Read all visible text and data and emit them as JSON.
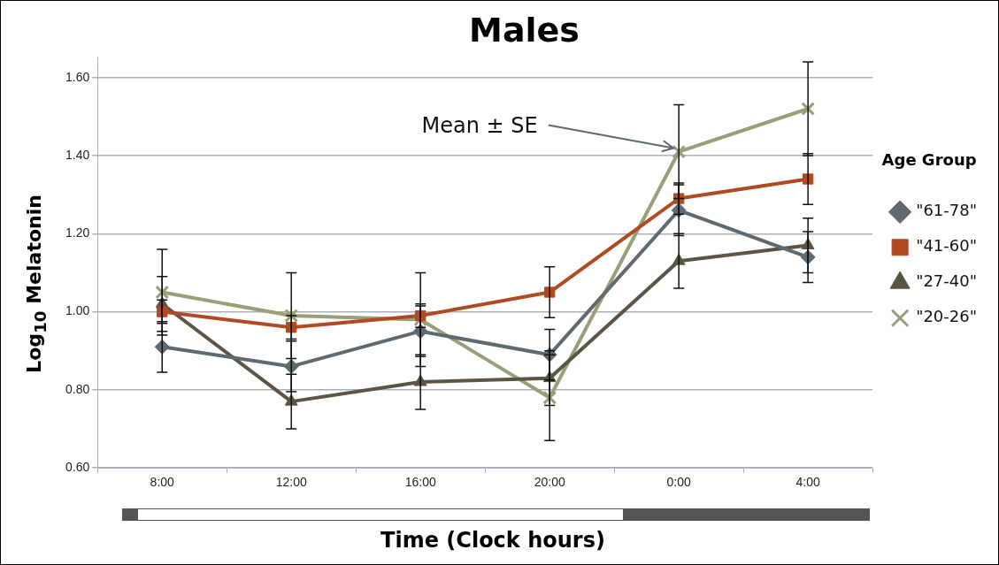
{
  "chart_data": {
    "type": "line",
    "title": "Males",
    "xlabel": "Time (Clock hours)",
    "ylabel": "Log$_{10}$ Melatonin",
    "legend_title": "Age Group",
    "categories": [
      "8:00",
      "12:00",
      "16:00",
      "20:00",
      "0:00",
      "4:00"
    ],
    "series": [
      {
        "name": "\"61-78\"",
        "color": "#5f6a70",
        "marker": "diamond",
        "values": [
          0.91,
          0.86,
          0.95,
          0.89,
          1.26,
          1.14
        ],
        "errors": [
          0.065,
          0.065,
          0.065,
          0.065,
          0.065,
          0.065
        ]
      },
      {
        "name": "\"41-60\"",
        "color": "#b04a22",
        "marker": "square",
        "values": [
          1.0,
          0.96,
          0.99,
          1.05,
          1.29,
          1.34
        ],
        "errors": [
          0.03,
          0.03,
          0.03,
          0.065,
          0.04,
          0.065
        ]
      },
      {
        "name": "\"27-40\"",
        "color": "#5c5444",
        "marker": "triangle",
        "values": [
          1.02,
          0.77,
          0.82,
          0.83,
          1.13,
          1.17
        ],
        "errors": [
          0.07,
          0.07,
          0.07,
          0.07,
          0.07,
          0.07
        ]
      },
      {
        "name": "\"20-26\"",
        "color": "#9a9f78",
        "marker": "cross",
        "values": [
          1.05,
          0.99,
          0.98,
          0.78,
          1.41,
          1.52
        ],
        "errors": [
          0.11,
          0.11,
          0.12,
          0.11,
          0.12,
          0.12
        ]
      }
    ],
    "ylim": [
      0.6,
      1.65
    ],
    "yticks": [
      {
        "value": 0.6,
        "label": "0.60"
      },
      {
        "value": 0.8,
        "label": "0.80"
      },
      {
        "value": 1.0,
        "label": "1.00"
      },
      {
        "value": 1.2,
        "label": "1.20"
      },
      {
        "value": 1.4,
        "label": "1.40"
      },
      {
        "value": 1.6,
        "label": "1.60"
      }
    ],
    "grid": "y",
    "legend": "right",
    "line_style": "solid",
    "annotations": [
      {
        "text": "Mean ± SE",
        "x": "0:00",
        "y": 1.41
      }
    ]
  }
}
